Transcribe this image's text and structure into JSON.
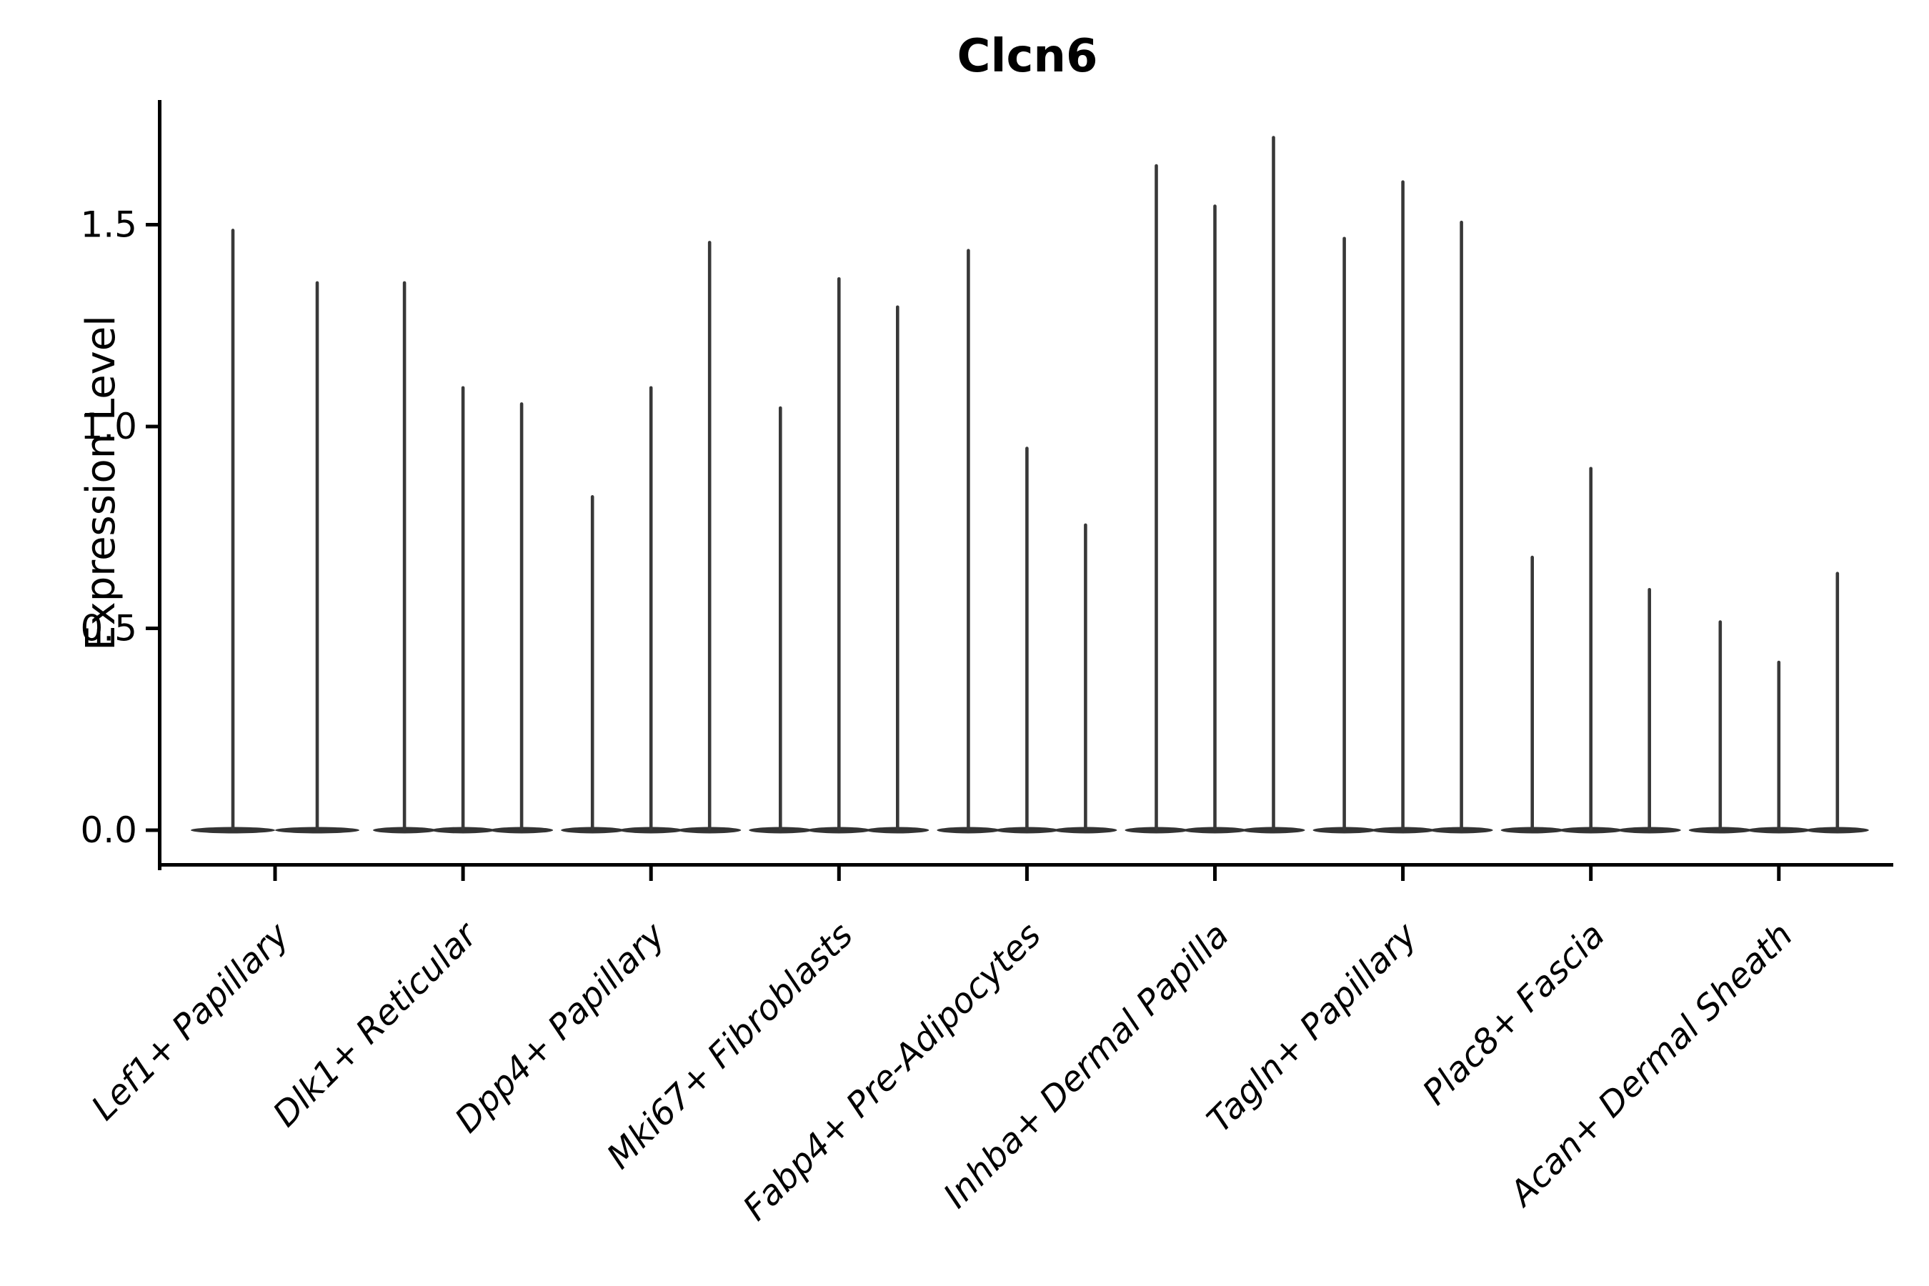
{
  "chart_data": {
    "type": "violin",
    "title": "Clcn6",
    "ylabel": "Expression Level",
    "xlabel": "",
    "ylim": [
      -0.09,
      1.81
    ],
    "yticks": [
      0.0,
      0.5,
      1.0,
      1.5
    ],
    "ytick_labels": [
      "0.0",
      "0.5",
      "1.0",
      "1.5"
    ],
    "x_tick_rotation_deg": 45,
    "grid": "off",
    "legend": "none",
    "violin_style": "needle violins: dense flat mass at 0 with thin spike up to max expression",
    "violin_color": "#333333",
    "spike_color": "#383838",
    "axis_color": "#000000",
    "background_color": "#ffffff",
    "categories": [
      "Lef1+ Papillary",
      "Dlk1+ Reticular",
      "Dpp4+ Papillary",
      "Mki67+ Fibroblasts",
      "Fabp4+ Pre-Adipocytes",
      "Inhba+ Dermal Papilla",
      "Tagln+ Papillary",
      "Plac8+ Fascia",
      "Acan+ Dermal Sheath"
    ],
    "groups": [
      {
        "label": "Lef1+ Papillary",
        "violin_maxima": [
          1.49,
          1.36
        ]
      },
      {
        "label": "Dlk1+ Reticular",
        "violin_maxima": [
          1.36,
          1.1,
          1.06
        ]
      },
      {
        "label": "Dpp4+ Papillary",
        "violin_maxima": [
          0.83,
          1.1,
          1.46
        ]
      },
      {
        "label": "Mki67+ Fibroblasts",
        "violin_maxima": [
          1.05,
          1.37,
          1.3
        ]
      },
      {
        "label": "Fabp4+ Pre-Adipocytes",
        "violin_maxima": [
          1.44,
          0.95,
          0.76
        ]
      },
      {
        "label": "Inhba+ Dermal Papilla",
        "violin_maxima": [
          1.65,
          1.55,
          1.72
        ]
      },
      {
        "label": "Tagln+ Papillary",
        "violin_maxima": [
          1.47,
          1.61,
          1.51
        ]
      },
      {
        "label": "Plac8+ Fascia",
        "violin_maxima": [
          0.68,
          0.9,
          0.6
        ]
      },
      {
        "label": "Acan+ Dermal Sheath",
        "violin_maxima": [
          0.52,
          0.42,
          0.64
        ]
      }
    ]
  }
}
